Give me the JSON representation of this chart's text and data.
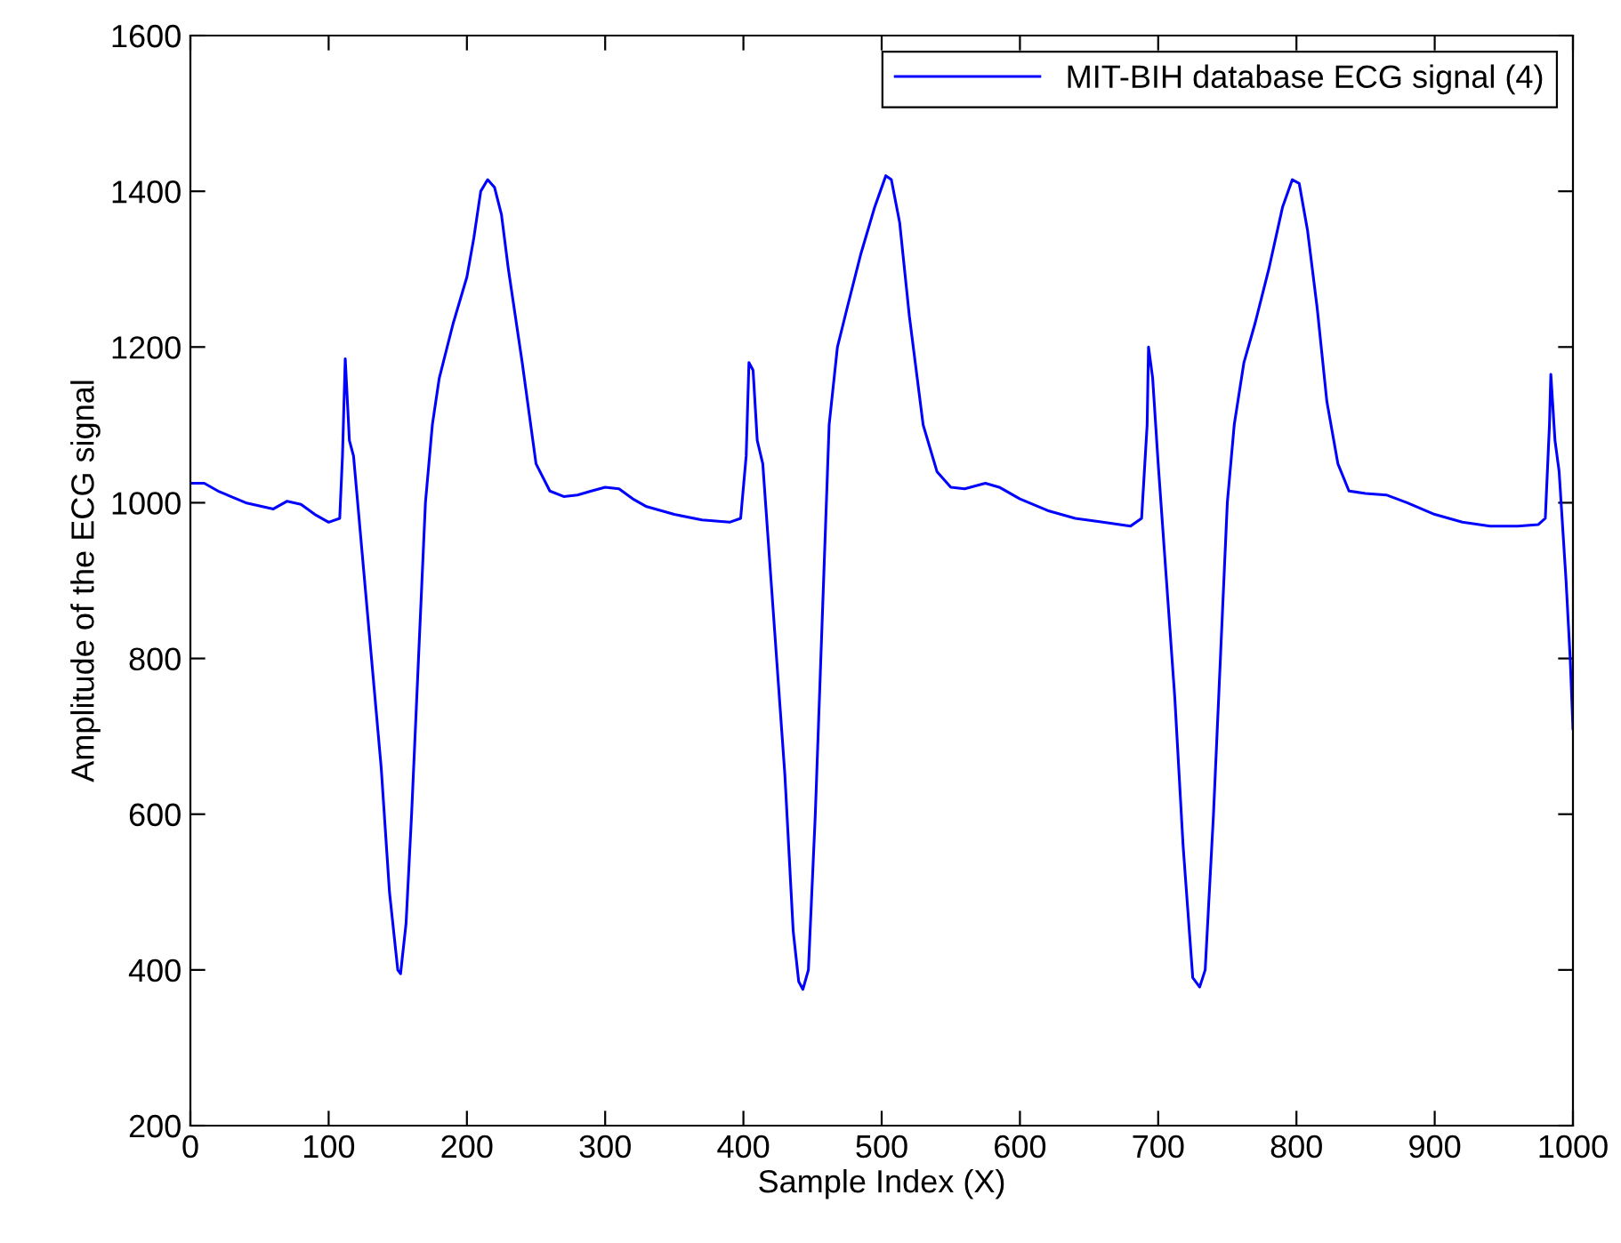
{
  "chart_data": {
    "type": "line",
    "xlabel": "Sample Index (X)",
    "ylabel": "Amplitude of the ECG signal",
    "xlim": [
      0,
      1000
    ],
    "ylim": [
      200,
      1600
    ],
    "xticks": [
      0,
      100,
      200,
      300,
      400,
      500,
      600,
      700,
      800,
      900,
      1000
    ],
    "yticks": [
      200,
      400,
      600,
      800,
      1000,
      1200,
      1400,
      1600
    ],
    "legend": "top right",
    "grid": false,
    "marker": "none",
    "line_style": "solid",
    "series": [
      {
        "name": "MIT-BIH database ECG signal (4)",
        "color": "#0000ff",
        "x": [
          0,
          10,
          20,
          40,
          60,
          70,
          80,
          90,
          100,
          108,
          110,
          112,
          115,
          118,
          122,
          130,
          138,
          144,
          150,
          152,
          156,
          160,
          165,
          170,
          175,
          180,
          190,
          200,
          205,
          210,
          215,
          220,
          225,
          230,
          240,
          250,
          260,
          270,
          280,
          290,
          300,
          310,
          320,
          330,
          350,
          370,
          390,
          398,
          402,
          404,
          407,
          410,
          414,
          420,
          430,
          436,
          440,
          443,
          447,
          452,
          457,
          462,
          468,
          475,
          485,
          495,
          503,
          507,
          513,
          520,
          530,
          540,
          550,
          560,
          575,
          585,
          600,
          620,
          640,
          660,
          680,
          688,
          692,
          693,
          696,
          700,
          706,
          712,
          718,
          725,
          730,
          734,
          740,
          745,
          750,
          755,
          762,
          770,
          780,
          790,
          797,
          802,
          808,
          815,
          822,
          830,
          838,
          850,
          865,
          880,
          900,
          920,
          940,
          960,
          975,
          980,
          983,
          984,
          987,
          990,
          995,
          998,
          1000
        ],
        "values": [
          1025,
          1025,
          1015,
          1000,
          992,
          1002,
          998,
          985,
          975,
          980,
          1060,
          1185,
          1080,
          1060,
          980,
          820,
          660,
          500,
          400,
          395,
          460,
          600,
          800,
          1000,
          1100,
          1160,
          1230,
          1290,
          1340,
          1400,
          1415,
          1405,
          1370,
          1300,
          1180,
          1050,
          1015,
          1008,
          1010,
          1015,
          1020,
          1018,
          1005,
          995,
          985,
          978,
          975,
          980,
          1060,
          1180,
          1170,
          1080,
          1050,
          900,
          650,
          450,
          385,
          375,
          400,
          600,
          850,
          1100,
          1200,
          1250,
          1320,
          1380,
          1420,
          1415,
          1360,
          1240,
          1100,
          1040,
          1020,
          1018,
          1025,
          1020,
          1005,
          990,
          980,
          975,
          970,
          980,
          1100,
          1200,
          1160,
          1050,
          900,
          750,
          560,
          390,
          378,
          400,
          600,
          800,
          1000,
          1100,
          1180,
          1230,
          1300,
          1380,
          1415,
          1410,
          1350,
          1250,
          1130,
          1050,
          1015,
          1012,
          1010,
          1000,
          985,
          975,
          970,
          970,
          972,
          980,
          1100,
          1165,
          1080,
          1040,
          900,
          800,
          710
        ]
      }
    ]
  }
}
